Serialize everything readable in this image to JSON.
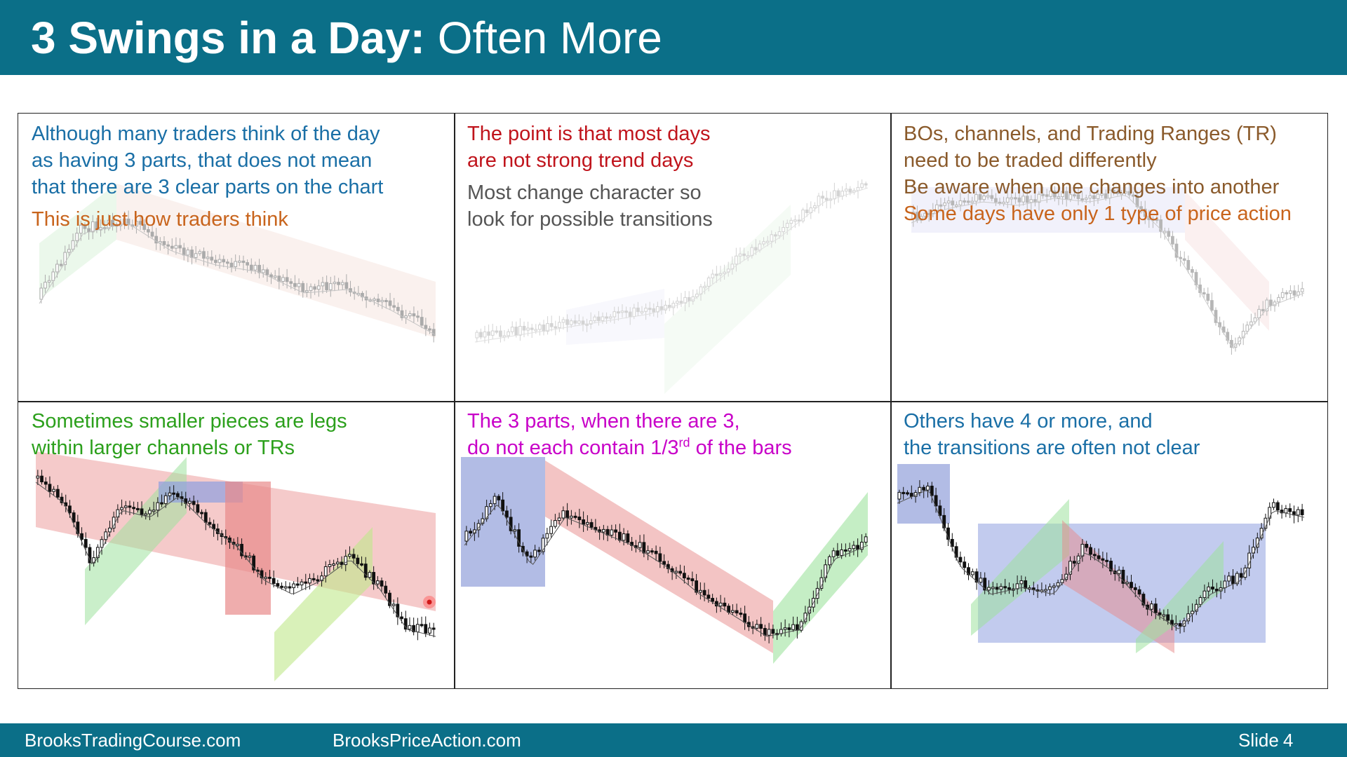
{
  "title": {
    "bold": "3 Swings in a Day:",
    "rest": "Often More"
  },
  "panels": [
    {
      "lines": [
        "Although many traders think of the day",
        "as having 3 parts, that does not mean",
        "that there are 3 clear parts on the chart"
      ],
      "note": "This is just how traders think"
    },
    {
      "lines": [
        "The point is that most days",
        "are not strong trend days"
      ],
      "note_lines": [
        "Most change character so",
        "look for possible transitions"
      ]
    },
    {
      "lines": [
        "BOs, channels, and Trading Ranges (TR)",
        "need to be traded differently",
        "Be aware when one changes into another",
        "Some days have only 1 type of price action"
      ]
    },
    {
      "lines": [
        "Sometimes smaller pieces are legs",
        "within larger channels or TRs"
      ]
    },
    {
      "line1": "The 3 parts, when there are 3,",
      "line2_pre": "do not each contain 1/3",
      "line2_sup": "rd",
      "line2_post": " of the bars"
    },
    {
      "lines": [
        "Others have 4 or more, and",
        "the transitions are often not clear"
      ]
    }
  ],
  "colors": {
    "header": "#0b6f88",
    "blue_text": "#1a6fa6",
    "orange_text": "#c8641c",
    "red_text": "#c0141c",
    "green_text": "#2ca01c",
    "magenta_text": "#c800c8"
  },
  "footer": {
    "left": "BrooksTradingCourse.com",
    "center": "BrooksPriceAction.com",
    "slide_label": "Slide",
    "slide_num": "4"
  }
}
